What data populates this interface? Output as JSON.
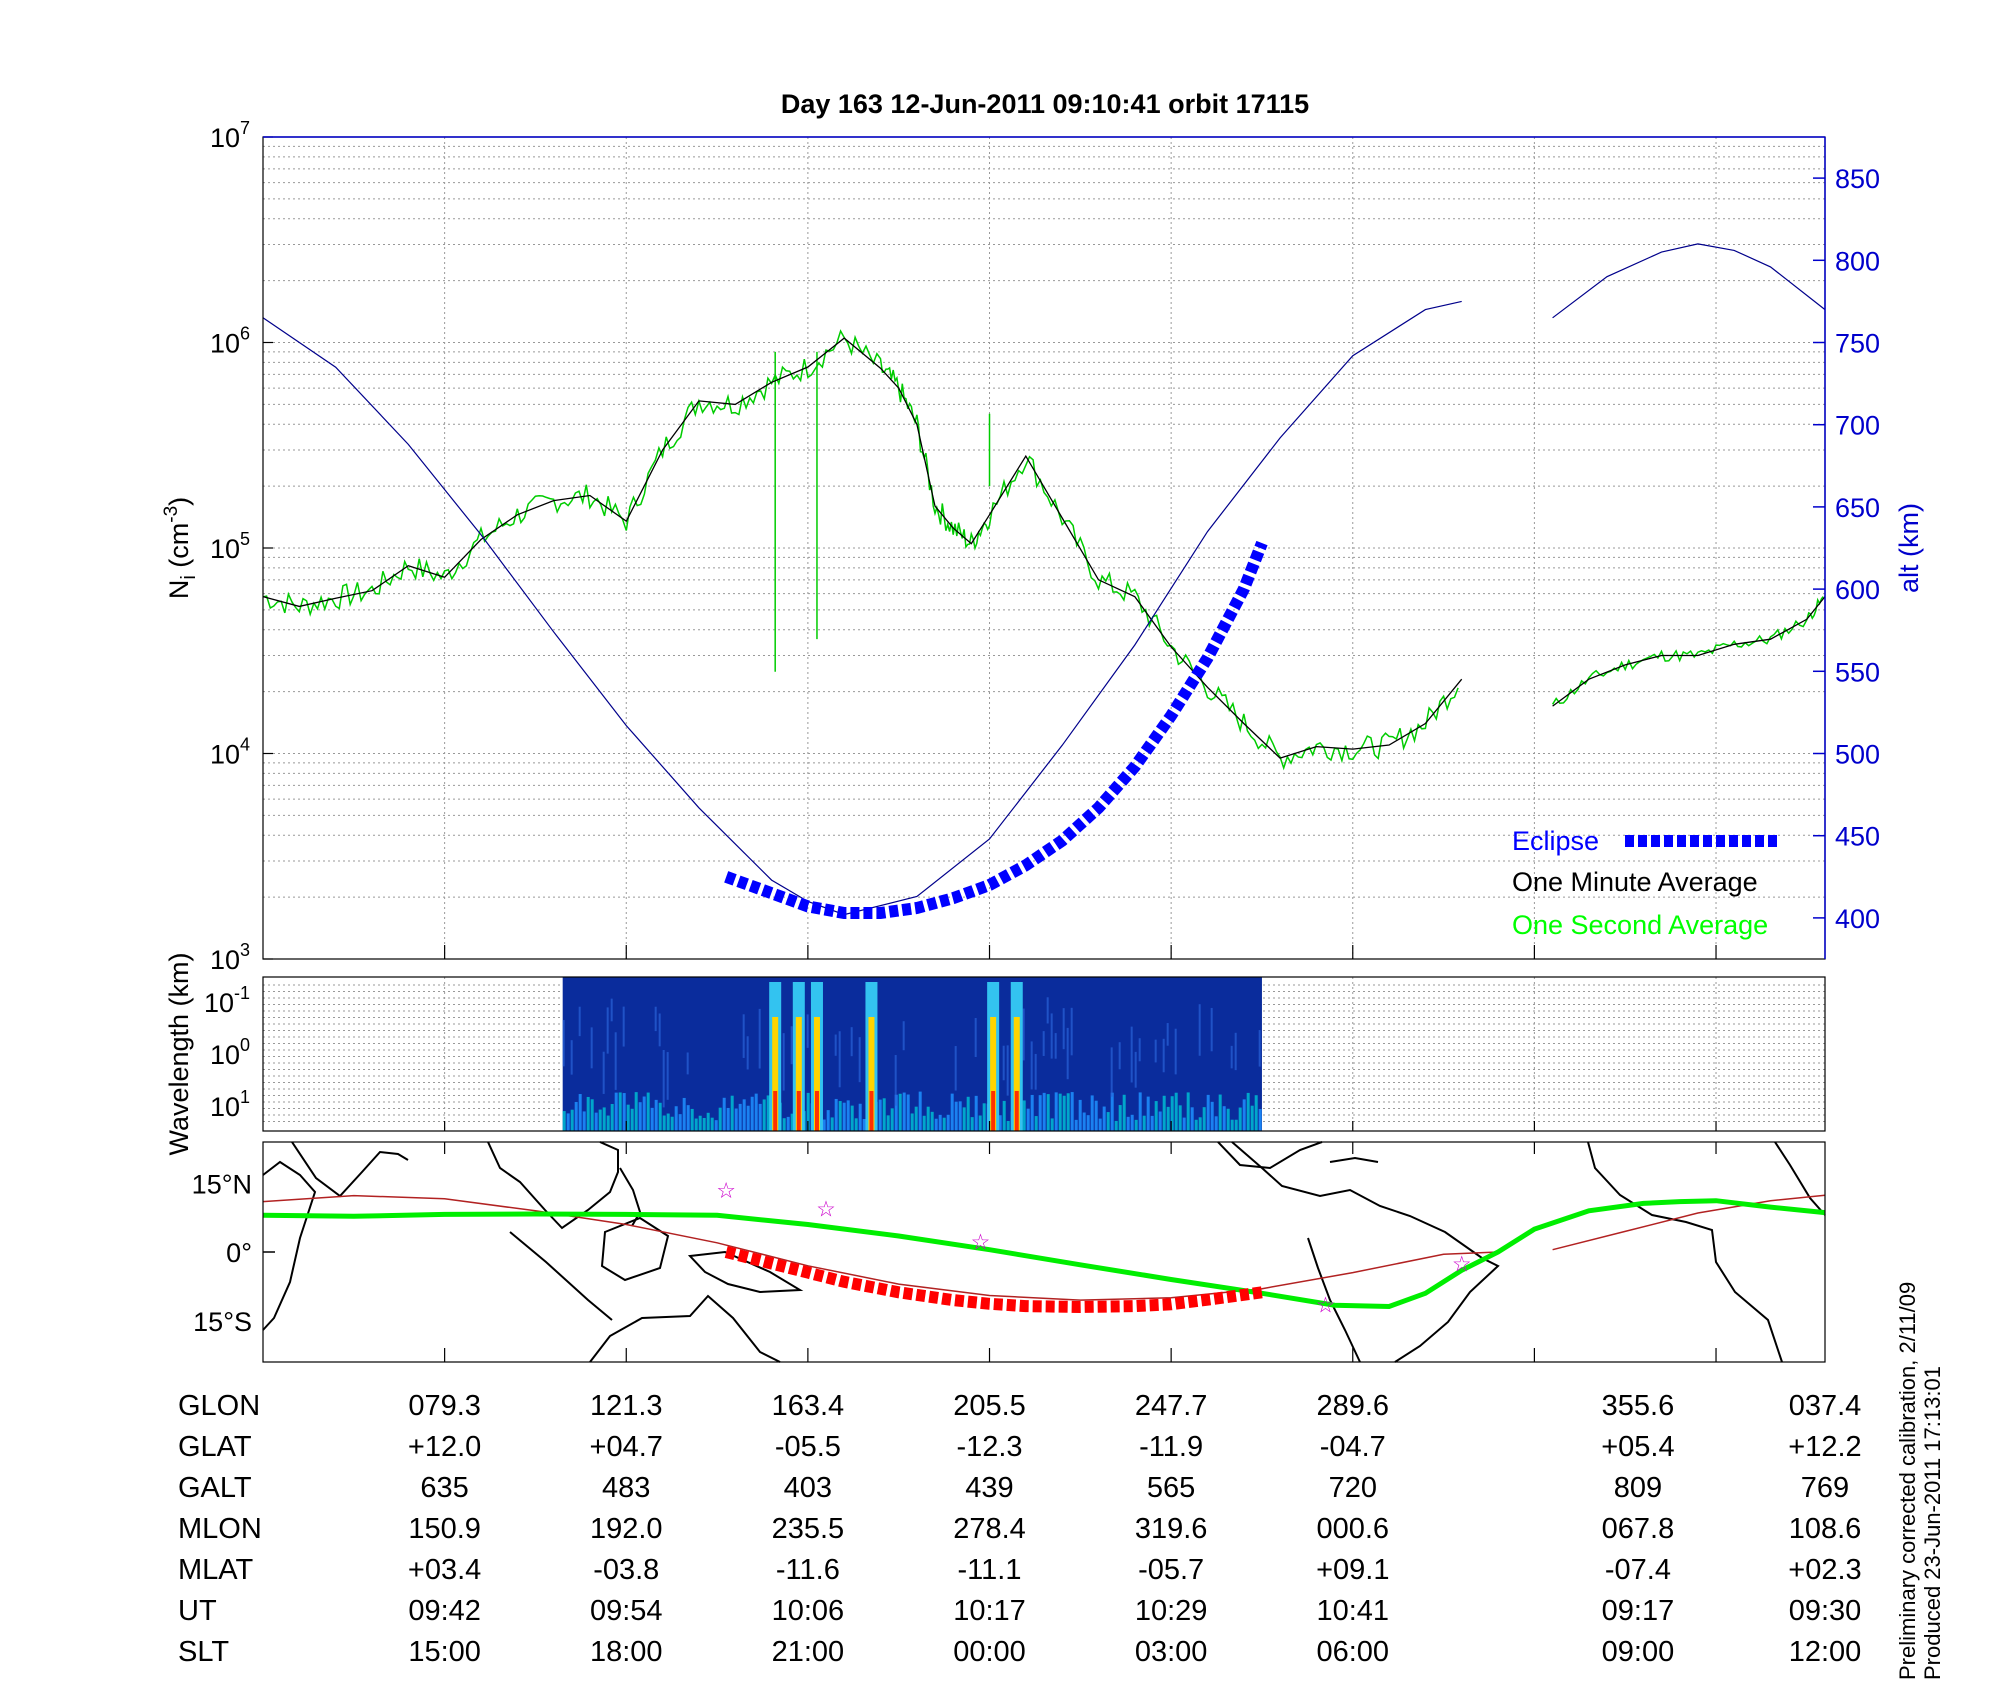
{
  "title": "Day 163  12-Jun-2011 09:10:41   orbit 17115",
  "colors": {
    "altitude": "#00008b",
    "one_minute": "#000000",
    "one_second": "#00cc00",
    "eclipse_blue": "#0000ff",
    "eclipse_red": "#ff0000",
    "orbit_track": "#00ee00",
    "magnetic_equator": "#b22222",
    "star": "#cc00cc",
    "right_axis": "#0000cc"
  },
  "legend": {
    "eclipse": "Eclipse",
    "one_minute": "One Minute Average",
    "one_second": "One Second Average"
  },
  "chart_data": [
    {
      "type": "line",
      "name": "density_panel",
      "ylabel": "N_i (cm^-3)",
      "yscale": "log",
      "ylim": [
        1000,
        10000000
      ],
      "yticks": [
        {
          "value": 1000,
          "base": "10",
          "exp": "3"
        },
        {
          "value": 10000,
          "base": "10",
          "exp": "4"
        },
        {
          "value": 100000,
          "base": "10",
          "exp": "5"
        },
        {
          "value": 1000000,
          "base": "10",
          "exp": "6"
        },
        {
          "value": 10000000,
          "base": "10",
          "exp": "7"
        }
      ],
      "y2label": "alt (km)",
      "y2lim": [
        375,
        875
      ],
      "y2ticks": [
        400,
        450,
        500,
        550,
        600,
        650,
        700,
        750,
        800,
        850
      ],
      "xlim": [
        0,
        8.6
      ],
      "grid": true,
      "legend_position": "bottom-right",
      "series": [
        {
          "name": "One Minute Average",
          "x": [
            0.0,
            0.2,
            0.4,
            0.6,
            0.8,
            1.0,
            1.2,
            1.4,
            1.6,
            1.8,
            2.0,
            2.2,
            2.4,
            2.6,
            2.8,
            3.0,
            3.2,
            3.4,
            3.5,
            3.6,
            3.7,
            3.8,
            3.9,
            4.0,
            4.2,
            4.4,
            4.6,
            4.8,
            5.0,
            5.2,
            5.4,
            5.6,
            5.8,
            6.0,
            6.2,
            6.4,
            6.6
          ],
          "values": [
            58000,
            52000,
            57000,
            62000,
            82000,
            72000,
            110000,
            145000,
            170000,
            180000,
            135000,
            300000,
            520000,
            500000,
            640000,
            760000,
            1050000,
            750000,
            600000,
            400000,
            160000,
            125000,
            105000,
            145000,
            280000,
            140000,
            70000,
            58000,
            33000,
            21000,
            14000,
            9500,
            10800,
            10500,
            11000,
            14000,
            23000
          ]
        },
        {
          "name": "One Minute Average (2nd segment)",
          "x": [
            7.1,
            7.3,
            7.5,
            7.7,
            7.9,
            8.1,
            8.3,
            8.5,
            8.6
          ],
          "values": [
            17000,
            23000,
            27000,
            30000,
            30000,
            34000,
            36000,
            45000,
            58000
          ]
        },
        {
          "name": "altitude",
          "x": [
            0.0,
            0.4,
            0.8,
            1.2,
            1.6,
            2.0,
            2.4,
            2.8,
            3.0,
            3.2,
            3.6,
            4.0,
            4.4,
            4.8,
            5.2,
            5.6,
            6.0,
            6.4,
            6.6
          ],
          "values": [
            765,
            735,
            688,
            633,
            574,
            517,
            467,
            423,
            410,
            402,
            413,
            448,
            505,
            566,
            635,
            692,
            742,
            770,
            775
          ]
        },
        {
          "name": "altitude (2nd segment)",
          "x": [
            7.1,
            7.4,
            7.7,
            7.9,
            8.1,
            8.3,
            8.6
          ],
          "values": [
            765,
            790,
            805,
            810,
            806,
            796,
            770
          ]
        },
        {
          "name": "Eclipse",
          "x": [
            2.55,
            2.8,
            3.0,
            3.2,
            3.4,
            3.6,
            3.8,
            4.0,
            4.2,
            4.4,
            4.6,
            4.8,
            5.0,
            5.2,
            5.4,
            5.5
          ],
          "values": [
            425,
            415,
            407,
            403,
            403,
            406,
            412,
            420,
            432,
            447,
            467,
            492,
            523,
            558,
            600,
            628
          ]
        }
      ]
    },
    {
      "type": "heatmap",
      "name": "wavelength_panel",
      "ylabel": "Wavelength (km)",
      "yscale": "log",
      "yticks": [
        {
          "base": "10",
          "exp": "-1"
        },
        {
          "base": "10",
          "exp": "0"
        },
        {
          "base": "10",
          "exp": "1"
        }
      ],
      "xrange": [
        1.65,
        5.5
      ],
      "bursts_x": [
        2.82,
        2.95,
        3.05,
        3.35,
        4.02,
        4.15
      ]
    },
    {
      "type": "line",
      "name": "map_panel",
      "yticks": [
        "15°N",
        "0°",
        "15°S"
      ],
      "ylim": [
        -24,
        24
      ],
      "xlim": [
        0,
        8.6
      ],
      "series": [
        {
          "name": "orbit track",
          "x": [
            0.0,
            0.5,
            1.0,
            1.5,
            2.0,
            2.5,
            3.0,
            3.5,
            4.0,
            4.5,
            5.0,
            5.5,
            5.9,
            6.2,
            6.4,
            6.6,
            6.8,
            7.0,
            7.3,
            7.6,
            7.8,
            8.0,
            8.3,
            8.6
          ],
          "values": [
            8,
            7.8,
            8.2,
            8.3,
            8.2,
            8,
            6,
            3.5,
            0.5,
            -2.8,
            -6,
            -9,
            -11.6,
            -11.9,
            -9,
            -4,
            0,
            5,
            9,
            10.6,
            11,
            11.2,
            9.8,
            8.6
          ]
        },
        {
          "name": "magnetic equator",
          "x": [
            0.0,
            0.5,
            1.0,
            1.5,
            2.0,
            2.5,
            3.0,
            3.5,
            4.0,
            4.5,
            5.0,
            5.5,
            6.0,
            6.5,
            6.8
          ],
          "values": [
            11,
            12.3,
            11.6,
            9,
            6,
            2,
            -3,
            -7,
            -9.5,
            -10.5,
            -10,
            -8,
            -4.5,
            -0.5,
            0
          ]
        },
        {
          "name": "magnetic equator (2nd segment)",
          "x": [
            7.1,
            7.5,
            7.9,
            8.3,
            8.6
          ],
          "values": [
            0.5,
            4.5,
            8.5,
            11.2,
            12.4
          ]
        },
        {
          "name": "eclipse track",
          "x": [
            2.55,
            2.8,
            3.0,
            3.2,
            3.5,
            3.8,
            4.0,
            4.2,
            4.5,
            4.8,
            5.0,
            5.2,
            5.5
          ],
          "values": [
            0,
            -2.5,
            -4.5,
            -6.5,
            -8.8,
            -10.5,
            -11.3,
            -11.8,
            -12,
            -11.8,
            -11.4,
            -10.4,
            -8.8
          ]
        }
      ],
      "stars": [
        {
          "x": 2.55,
          "y": 13.5
        },
        {
          "x": 3.1,
          "y": 9.5
        },
        {
          "x": 3.95,
          "y": 2.3
        },
        {
          "x": 5.85,
          "y": -11.5
        },
        {
          "x": 6.6,
          "y": -2.5
        }
      ]
    }
  ],
  "x_ticks": [
    1.0,
    2.0,
    3.0,
    4.0,
    5.0,
    6.0,
    7.0,
    8.0
  ],
  "table": {
    "x": [
      1.0,
      2.0,
      3.0,
      4.0,
      5.0,
      6.0,
      7.57,
      8.6
    ],
    "rows": [
      {
        "label": "GLON",
        "values": [
          "079.3",
          "121.3",
          "163.4",
          "205.5",
          "247.7",
          "289.6",
          "355.6",
          "037.4"
        ]
      },
      {
        "label": "GLAT",
        "values": [
          "+12.0",
          "+04.7",
          "-05.5",
          "-12.3",
          "-11.9",
          "-04.7",
          "+05.4",
          "+12.2"
        ]
      },
      {
        "label": "GALT",
        "values": [
          "635",
          "483",
          "403",
          "439",
          "565",
          "720",
          "809",
          "769"
        ]
      },
      {
        "label": "MLON",
        "values": [
          "150.9",
          "192.0",
          "235.5",
          "278.4",
          "319.6",
          "000.6",
          "067.8",
          "108.6"
        ]
      },
      {
        "label": "MLAT",
        "values": [
          "+03.4",
          "-03.8",
          "-11.6",
          "-11.1",
          "-05.7",
          "+09.1",
          "-07.4",
          "+02.3"
        ]
      },
      {
        "label": "UT",
        "values": [
          "09:42",
          "09:54",
          "10:06",
          "10:17",
          "10:29",
          "10:41",
          "09:17",
          "09:30"
        ]
      },
      {
        "label": "SLT",
        "values": [
          "15:00",
          "18:00",
          "21:00",
          "00:00",
          "03:00",
          "06:00",
          "09:00",
          "12:00"
        ]
      }
    ]
  },
  "footnote": {
    "line1": "Preliminary corrected calibration, 2/11/09",
    "line2": "Produced 23-Jun-2011 17:13:01"
  }
}
